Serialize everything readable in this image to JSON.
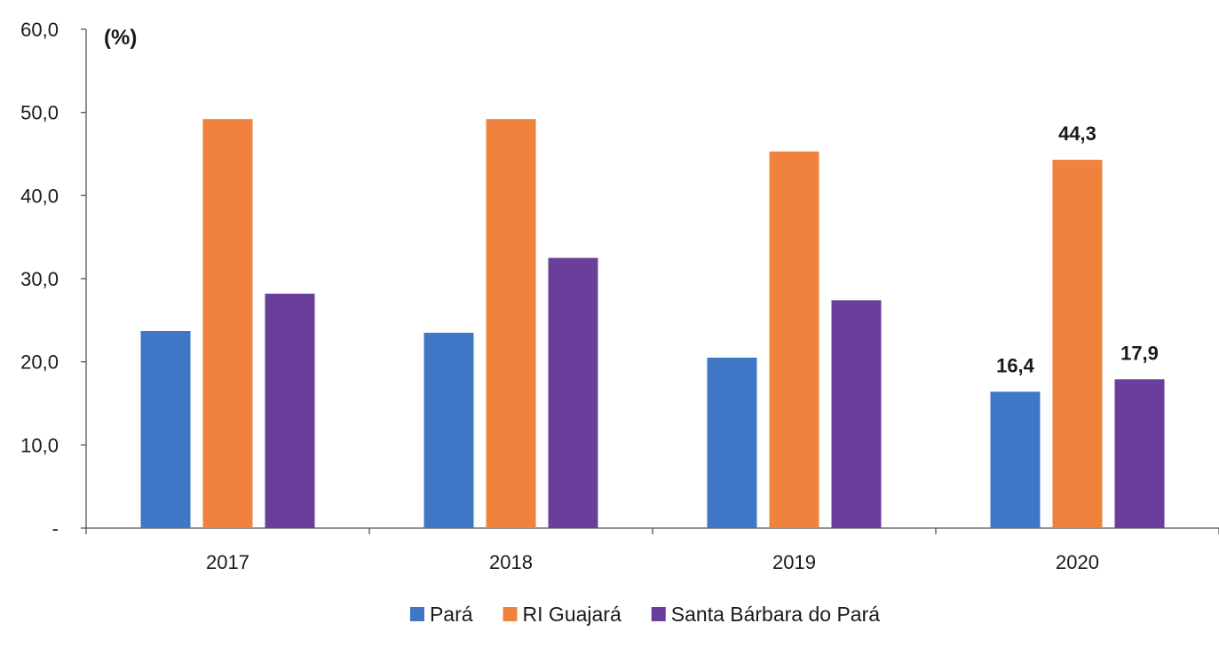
{
  "chart_data": {
    "type": "bar",
    "title": "",
    "xlabel": "",
    "ylabel": "",
    "unit_label": "(%)",
    "categories": [
      "2017",
      "2018",
      "2019",
      "2020"
    ],
    "ylim": [
      0,
      60
    ],
    "yticks": [
      {
        "value": 0,
        "label": "-"
      },
      {
        "value": 10,
        "label": "10,0"
      },
      {
        "value": 20,
        "label": "20,0"
      },
      {
        "value": 30,
        "label": "30,0"
      },
      {
        "value": 40,
        "label": "40,0"
      },
      {
        "value": 50,
        "label": "50,0"
      },
      {
        "value": 60,
        "label": "60,0"
      }
    ],
    "series": [
      {
        "name": "Pará",
        "color": "#3f76c5",
        "values": [
          23.7,
          23.5,
          20.5,
          16.4
        ]
      },
      {
        "name": "RI Guajará",
        "color": "#f0823e",
        "values": [
          49.2,
          49.2,
          45.3,
          44.3
        ]
      },
      {
        "name": "Santa Bárbara do Pará",
        "color": "#6a3f9c",
        "values": [
          28.2,
          32.5,
          27.4,
          17.9
        ]
      }
    ],
    "data_labels": [
      {
        "series": 0,
        "category": 3,
        "text": "16,4"
      },
      {
        "series": 1,
        "category": 3,
        "text": "44,3"
      },
      {
        "series": 2,
        "category": 3,
        "text": "17,9"
      }
    ],
    "grid": false,
    "legend_position": "bottom"
  }
}
